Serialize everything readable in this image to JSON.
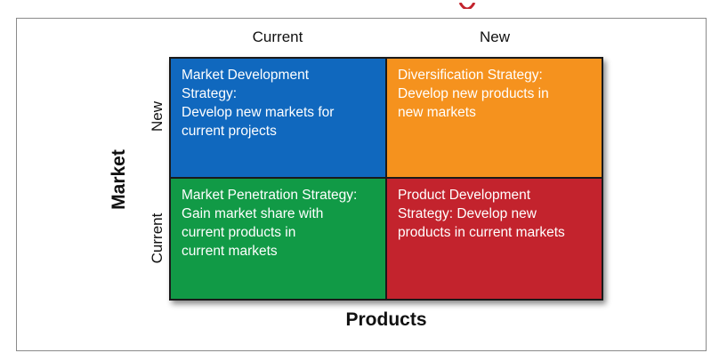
{
  "columns": {
    "current": "Current",
    "new": "New"
  },
  "rows": {
    "new": "New",
    "current": "Current"
  },
  "axes": {
    "y": "Market",
    "x": "Products"
  },
  "quadrants": {
    "top_left": [
      "Market Development",
      "Strategy:",
      "Develop new markets for",
      "current projects"
    ],
    "top_right": [
      "Diversification Strategy:",
      "Develop new products in",
      "new markets"
    ],
    "bottom_left": [
      "Market Penetration Strategy:",
      "Gain market share with",
      "current products in",
      "current markets"
    ],
    "bottom_right": [
      "Product Development",
      "Strategy: Develop new",
      "products in current markets"
    ]
  },
  "colors": {
    "development": "#1068be",
    "diversification": "#f5921e",
    "penetration": "#119a46",
    "product_development": "#c3232d"
  }
}
